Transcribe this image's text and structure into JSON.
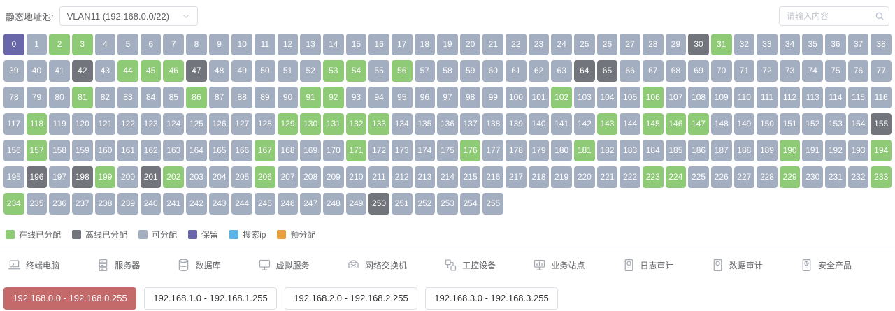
{
  "header": {
    "pool_label": "静态地址池:",
    "pool_select_value": "VLAN11 (192.168.0.0/22)",
    "search_placeholder": "请输入内容"
  },
  "colors": {
    "online": "#8fca77",
    "offline": "#72757b",
    "available": "#a4aec1",
    "reserved": "#6966aa",
    "search": "#5bb3e6",
    "pre": "#e9a23b",
    "active_tab": "#c56a6a"
  },
  "grid": {
    "count": 256,
    "reserved": [
      0
    ],
    "online": [
      2,
      3,
      31,
      44,
      45,
      46,
      53,
      54,
      56,
      81,
      86,
      91,
      92,
      102,
      106,
      118,
      129,
      130,
      131,
      132,
      133,
      143,
      145,
      146,
      147,
      157,
      167,
      171,
      176,
      181,
      190,
      194,
      199,
      202,
      206,
      223,
      224,
      229,
      233,
      234
    ],
    "offline": [
      30,
      42,
      47,
      64,
      65,
      155,
      196,
      198,
      201,
      250
    ]
  },
  "legend": [
    {
      "key": "online",
      "label": "在线已分配"
    },
    {
      "key": "offline",
      "label": "离线已分配"
    },
    {
      "key": "available",
      "label": "可分配"
    },
    {
      "key": "reserved",
      "label": "保留"
    },
    {
      "key": "search",
      "label": "搜索ip"
    },
    {
      "key": "pre",
      "label": "预分配"
    }
  ],
  "devices": [
    {
      "icon": "laptop-icon",
      "label": "终端电脑"
    },
    {
      "icon": "server-icon",
      "label": "服务器"
    },
    {
      "icon": "database-icon",
      "label": "数据库"
    },
    {
      "icon": "virtual-service-icon",
      "label": "虚拟服务"
    },
    {
      "icon": "network-switch-icon",
      "label": "网络交换机"
    },
    {
      "icon": "industrial-device-icon",
      "label": "工控设备"
    },
    {
      "icon": "business-site-icon",
      "label": "业务站点"
    },
    {
      "icon": "log-audit-icon",
      "label": "日志审计"
    },
    {
      "icon": "data-audit-icon",
      "label": "数据审计"
    },
    {
      "icon": "security-product-icon",
      "label": "安全产品"
    }
  ],
  "tabs": [
    {
      "label": "192.168.0.0 - 192.168.0.255",
      "active": true
    },
    {
      "label": "192.168.1.0 - 192.168.1.255",
      "active": false
    },
    {
      "label": "192.168.2.0 - 192.168.2.255",
      "active": false
    },
    {
      "label": "192.168.3.0 - 192.168.3.255",
      "active": false
    }
  ]
}
